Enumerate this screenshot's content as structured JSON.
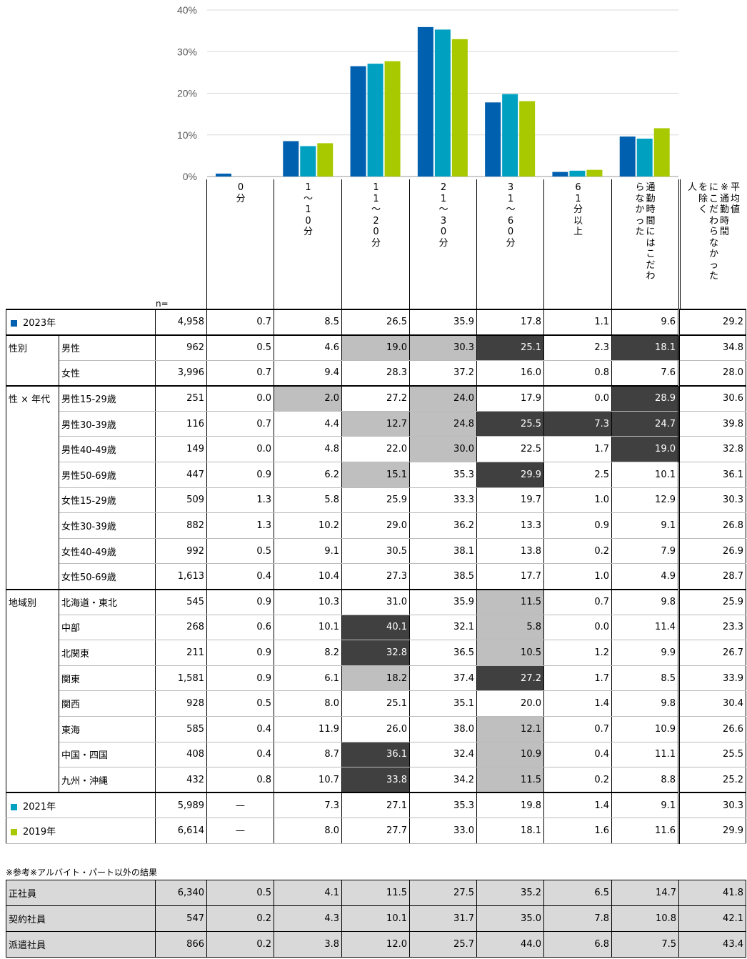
{
  "chart_data": {
    "type": "bar",
    "categories": [
      "0分",
      "1〜10分",
      "11〜20分",
      "21〜30分",
      "31〜60分",
      "61分以上",
      "通勤時間にはこだわらなかった"
    ],
    "series": [
      {
        "name": "2023年",
        "values": [
          0.7,
          8.5,
          26.5,
          35.9,
          17.8,
          1.1,
          9.6
        ],
        "color": "#0060b0"
      },
      {
        "name": "2021年",
        "values": [
          null,
          7.3,
          27.1,
          35.3,
          19.8,
          1.4,
          9.1
        ],
        "color": "#00a0c0"
      },
      {
        "name": "2019年",
        "values": [
          null,
          8.0,
          27.7,
          33.0,
          18.1,
          1.6,
          11.6
        ],
        "color": "#a8c800"
      }
    ],
    "yticks": [
      "40%",
      "30%",
      "20%",
      "10%",
      "0%"
    ],
    "ylim": [
      0,
      40
    ],
    "grid": true
  },
  "header": {
    "n_label": "n=",
    "cols": [
      [
        "0",
        "分"
      ],
      [
        "1",
        "〜",
        "1",
        "0",
        "分"
      ],
      [
        "1",
        "1",
        "〜",
        "2",
        "0",
        "分"
      ],
      [
        "2",
        "1",
        "〜",
        "3",
        "0",
        "分"
      ],
      [
        "3",
        "1",
        "〜",
        "6",
        "0",
        "分"
      ],
      [
        "6",
        "1",
        "分",
        "以",
        "上"
      ],
      [
        "通勤時間にはこだわ",
        "らなかった"
      ],
      [
        "平均値",
        "※通勤時間",
        "にこだわらなかった",
        "を除く",
        "人"
      ]
    ]
  },
  "rows": [
    {
      "g": "",
      "sq": "#0060b0",
      "label": "2023年",
      "n": "4,958",
      "v": [
        "0.7",
        "8.5",
        "26.5",
        "35.9",
        "17.8",
        "1.1",
        "9.6",
        "29.2"
      ],
      "s": [
        0,
        0,
        0,
        0,
        0,
        0,
        0,
        0
      ],
      "top": true
    },
    {
      "g": "性別",
      "label": "男性",
      "n": "962",
      "v": [
        "0.5",
        "4.6",
        "19.0",
        "30.3",
        "25.1",
        "2.3",
        "18.1",
        "34.8"
      ],
      "s": [
        0,
        0,
        1,
        1,
        2,
        0,
        2,
        0
      ],
      "top": true
    },
    {
      "g": "",
      "label": "女性",
      "n": "3,996",
      "v": [
        "0.7",
        "9.4",
        "28.3",
        "37.2",
        "16.0",
        "0.8",
        "7.6",
        "28.0"
      ],
      "s": [
        0,
        0,
        0,
        0,
        0,
        0,
        0,
        0
      ]
    },
    {
      "g": "性 × 年代",
      "label": "男性15-29歳",
      "n": "251",
      "v": [
        "0.0",
        "2.0",
        "27.2",
        "24.0",
        "17.9",
        "0.0",
        "28.9",
        "30.6"
      ],
      "s": [
        0,
        1,
        0,
        1,
        0,
        0,
        2,
        0
      ],
      "top": true
    },
    {
      "g": "",
      "label": "男性30-39歳",
      "n": "116",
      "v": [
        "0.7",
        "4.4",
        "12.7",
        "24.8",
        "25.5",
        "7.3",
        "24.7",
        "39.8"
      ],
      "s": [
        0,
        0,
        1,
        1,
        2,
        2,
        2,
        0
      ]
    },
    {
      "g": "",
      "label": "男性40-49歳",
      "n": "149",
      "v": [
        "0.0",
        "4.8",
        "22.0",
        "30.0",
        "22.5",
        "1.7",
        "19.0",
        "32.8"
      ],
      "s": [
        0,
        0,
        0,
        1,
        0,
        0,
        2,
        0
      ]
    },
    {
      "g": "",
      "label": "男性50-69歳",
      "n": "447",
      "v": [
        "0.9",
        "6.2",
        "15.1",
        "35.3",
        "29.9",
        "2.5",
        "10.1",
        "36.1"
      ],
      "s": [
        0,
        0,
        1,
        0,
        2,
        0,
        0,
        0
      ]
    },
    {
      "g": "",
      "label": "女性15-29歳",
      "n": "509",
      "v": [
        "1.3",
        "5.8",
        "25.9",
        "33.3",
        "19.7",
        "1.0",
        "12.9",
        "30.3"
      ],
      "s": [
        0,
        0,
        0,
        0,
        0,
        0,
        0,
        0
      ]
    },
    {
      "g": "",
      "label": "女性30-39歳",
      "n": "882",
      "v": [
        "1.3",
        "10.2",
        "29.0",
        "36.2",
        "13.3",
        "0.9",
        "9.1",
        "26.8"
      ],
      "s": [
        0,
        0,
        0,
        0,
        0,
        0,
        0,
        0
      ]
    },
    {
      "g": "",
      "label": "女性40-49歳",
      "n": "992",
      "v": [
        "0.5",
        "9.1",
        "30.5",
        "38.1",
        "13.8",
        "0.2",
        "7.9",
        "26.9"
      ],
      "s": [
        0,
        0,
        0,
        0,
        0,
        0,
        0,
        0
      ]
    },
    {
      "g": "",
      "label": "女性50-69歳",
      "n": "1,613",
      "v": [
        "0.4",
        "10.4",
        "27.3",
        "38.5",
        "17.7",
        "1.0",
        "4.9",
        "28.7"
      ],
      "s": [
        0,
        0,
        0,
        0,
        0,
        0,
        0,
        0
      ]
    },
    {
      "g": "地域別",
      "label": "北海道・東北",
      "n": "545",
      "v": [
        "0.9",
        "10.3",
        "31.0",
        "35.9",
        "11.5",
        "0.7",
        "9.8",
        "25.9"
      ],
      "s": [
        0,
        0,
        0,
        0,
        1,
        0,
        0,
        0
      ],
      "top": true
    },
    {
      "g": "",
      "label": "中部",
      "n": "268",
      "v": [
        "0.6",
        "10.1",
        "40.1",
        "32.1",
        "5.8",
        "0.0",
        "11.4",
        "23.3"
      ],
      "s": [
        0,
        0,
        2,
        0,
        1,
        0,
        0,
        0
      ]
    },
    {
      "g": "",
      "label": "北関東",
      "n": "211",
      "v": [
        "0.9",
        "8.2",
        "32.8",
        "36.5",
        "10.5",
        "1.2",
        "9.9",
        "26.7"
      ],
      "s": [
        0,
        0,
        2,
        0,
        1,
        0,
        0,
        0
      ]
    },
    {
      "g": "",
      "label": "関東",
      "n": "1,581",
      "v": [
        "0.9",
        "6.1",
        "18.2",
        "37.4",
        "27.2",
        "1.7",
        "8.5",
        "33.9"
      ],
      "s": [
        0,
        0,
        1,
        0,
        2,
        0,
        0,
        0
      ]
    },
    {
      "g": "",
      "label": "関西",
      "n": "928",
      "v": [
        "0.5",
        "8.0",
        "25.1",
        "35.1",
        "20.0",
        "1.4",
        "9.8",
        "30.4"
      ],
      "s": [
        0,
        0,
        0,
        0,
        0,
        0,
        0,
        0
      ]
    },
    {
      "g": "",
      "label": "東海",
      "n": "585",
      "v": [
        "0.4",
        "11.9",
        "26.0",
        "38.0",
        "12.1",
        "0.7",
        "10.9",
        "26.6"
      ],
      "s": [
        0,
        0,
        0,
        0,
        1,
        0,
        0,
        0
      ]
    },
    {
      "g": "",
      "label": "中国・四国",
      "n": "408",
      "v": [
        "0.4",
        "8.7",
        "36.1",
        "32.4",
        "10.9",
        "0.4",
        "11.1",
        "25.5"
      ],
      "s": [
        0,
        0,
        2,
        0,
        1,
        0,
        0,
        0
      ]
    },
    {
      "g": "",
      "label": "九州・沖縄",
      "n": "432",
      "v": [
        "0.8",
        "10.7",
        "33.8",
        "34.2",
        "11.5",
        "0.2",
        "8.8",
        "25.2"
      ],
      "s": [
        0,
        0,
        2,
        0,
        1,
        0,
        0,
        0
      ]
    },
    {
      "g": "",
      "sq": "#00a0c0",
      "label": "2021年",
      "n": "5,989",
      "v": [
        "—",
        "7.3",
        "27.1",
        "35.3",
        "19.8",
        "1.4",
        "9.1",
        "30.3"
      ],
      "s": [
        0,
        0,
        0,
        0,
        0,
        0,
        0,
        0
      ],
      "top": true
    },
    {
      "g": "",
      "sq": "#a8c800",
      "label": "2019年",
      "n": "6,614",
      "v": [
        "—",
        "8.0",
        "27.7",
        "33.0",
        "18.1",
        "1.6",
        "11.6",
        "29.9"
      ],
      "s": [
        0,
        0,
        0,
        0,
        0,
        0,
        0,
        0
      ]
    }
  ],
  "reference": {
    "title": "※参考※アルバイト・パート以外の結果",
    "rows": [
      {
        "label": "正社員",
        "n": "6,340",
        "v": [
          "0.5",
          "4.1",
          "11.5",
          "27.5",
          "35.2",
          "6.5",
          "14.7",
          "41.8"
        ]
      },
      {
        "label": "契約社員",
        "n": "547",
        "v": [
          "0.2",
          "4.3",
          "10.1",
          "31.7",
          "35.0",
          "7.8",
          "10.8",
          "42.1"
        ]
      },
      {
        "label": "派遣社員",
        "n": "866",
        "v": [
          "0.2",
          "3.8",
          "12.0",
          "25.7",
          "44.0",
          "6.8",
          "7.5",
          "43.4"
        ]
      }
    ]
  }
}
